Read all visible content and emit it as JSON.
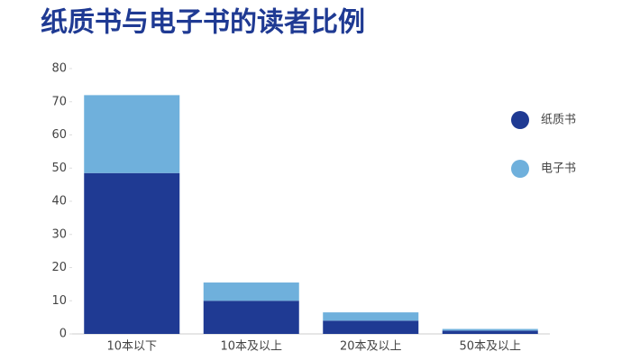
{
  "chart_data": {
    "type": "stacked_bar",
    "title": "纸质书与电子书的读者比例",
    "categories": [
      "10本以下",
      "10本及以上",
      "20本及以上",
      "50本及以上"
    ],
    "series": [
      {
        "name": "纸质书",
        "color": "#1f3a93",
        "values": [
          48.5,
          10,
          4,
          1
        ]
      },
      {
        "name": "电子书",
        "color": "#6fb0dc",
        "values": [
          23.5,
          5.5,
          2.5,
          0.5
        ]
      }
    ],
    "ylim": [
      0,
      80
    ],
    "yticks": [
      0,
      10,
      20,
      30,
      40,
      50,
      60,
      70,
      80
    ],
    "grid": false,
    "legend": "right"
  }
}
